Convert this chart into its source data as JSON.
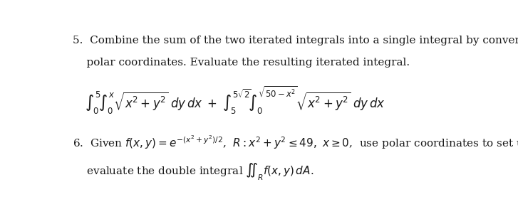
{
  "background_color": "#ffffff",
  "figsize": [
    7.27,
    3.15
  ],
  "dpi": 100,
  "text_color": "#1a1a1a",
  "font_size_text": 11,
  "font_size_math": 12
}
